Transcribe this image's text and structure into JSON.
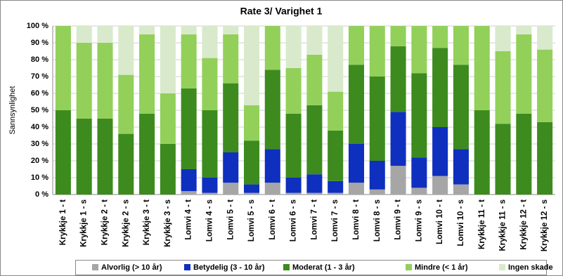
{
  "chart_data": {
    "type": "stacked_bar",
    "title": "Rate 3/ Varighet 1",
    "y_label": "Sannsynlighet",
    "categories": [
      "Krykkje  1 - t",
      "Krykkje  1 - s",
      "Krykkje  2 - t",
      "Krykkje  2 - s",
      "Krykkje  3 - t",
      "Krykkje  3 - s",
      "Lomvi  4 - t",
      "Lomvi  4 - s",
      "Lomvi  5 - t",
      "Lomvi  5 - s",
      "Lomvi  6 - t",
      "Lomvi  6 - s",
      "Lomvi  7 - t",
      "Lomvi  7 - s",
      "Lomvi  8 - t",
      "Lomvi  8 - s",
      "Lomvi  9 - t",
      "Lomvi  9 - s",
      "Lomvi  10 - t",
      "Lomvi  10 - s",
      "Krykkje  11 - t",
      "Krykkje  11 - s",
      "Krykkje  12 - t",
      "Krykkje  12 - s"
    ],
    "series": [
      {
        "name": "Alvorlig (> 10 år)",
        "color": "#a6a6a6",
        "values": [
          0,
          0,
          0,
          0,
          0,
          0,
          2,
          1,
          7,
          1,
          7,
          1,
          1,
          1,
          7,
          3,
          17,
          4,
          11,
          6,
          0,
          0,
          0,
          0
        ]
      },
      {
        "name": "Betydelig (3 - 10 år)",
        "color": "#0f2fbf",
        "values": [
          0,
          0,
          0,
          0,
          0,
          0,
          13,
          9,
          18,
          5,
          20,
          9,
          11,
          7,
          23,
          17,
          32,
          18,
          29,
          21,
          0,
          0,
          0,
          0
        ]
      },
      {
        "name": "Moderat (1 - 3 år)",
        "color": "#3d8b1e",
        "values": [
          50,
          45,
          45,
          36,
          48,
          30,
          48,
          40,
          41,
          26,
          47,
          38,
          41,
          30,
          47,
          50,
          39,
          50,
          47,
          50,
          50,
          42,
          48,
          43
        ]
      },
      {
        "name": "Mindre (< 1 år)",
        "color": "#92d05a",
        "values": [
          50,
          45,
          45,
          35,
          47,
          30,
          32,
          31,
          29,
          21,
          26,
          27,
          30,
          23,
          23,
          30,
          12,
          28,
          13,
          23,
          50,
          43,
          47,
          43
        ]
      },
      {
        "name": "Ingen skade",
        "color": "#d8eacb",
        "values": [
          0,
          10,
          10,
          29,
          5,
          40,
          5,
          19,
          5,
          47,
          0,
          25,
          17,
          39,
          0,
          0,
          0,
          0,
          0,
          0,
          0,
          15,
          5,
          14
        ]
      }
    ],
    "ylim": [
      0,
      100
    ],
    "yticks": [
      {
        "value": 0,
        "label": "0 %"
      },
      {
        "value": 10,
        "label": "10 %"
      },
      {
        "value": 20,
        "label": "20 %"
      },
      {
        "value": 30,
        "label": "30 %"
      },
      {
        "value": 40,
        "label": "40 %"
      },
      {
        "value": 50,
        "label": "50 %"
      },
      {
        "value": 60,
        "label": "60 %"
      },
      {
        "value": 70,
        "label": "70 %"
      },
      {
        "value": 80,
        "label": "80 %"
      },
      {
        "value": 90,
        "label": "90 %"
      },
      {
        "value": 100,
        "label": "100 %"
      }
    ],
    "grid": true,
    "legend": "bottom"
  }
}
